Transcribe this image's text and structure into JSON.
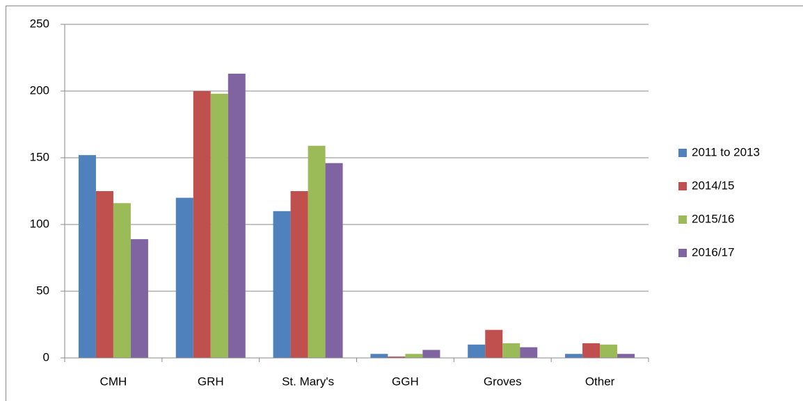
{
  "chart_data": {
    "type": "bar",
    "categories": [
      "CMH",
      "GRH",
      "St. Mary's",
      "GGH",
      "Groves",
      "Other"
    ],
    "series": [
      {
        "name": "2011 to 2013",
        "color": "#4f81bd",
        "values": [
          152,
          120,
          110,
          3,
          10,
          3
        ]
      },
      {
        "name": "2014/15",
        "color": "#c0504d",
        "values": [
          125,
          200,
          125,
          1,
          21,
          11
        ]
      },
      {
        "name": "2015/16",
        "color": "#9bbb59",
        "values": [
          116,
          198,
          159,
          3,
          11,
          10
        ]
      },
      {
        "name": "2016/17",
        "color": "#8064a2",
        "values": [
          89,
          213,
          146,
          6,
          8,
          3
        ]
      }
    ],
    "ylim": [
      0,
      250
    ],
    "yticks": [
      0,
      50,
      100,
      150,
      200,
      250
    ],
    "grid": true,
    "legend": "right"
  }
}
